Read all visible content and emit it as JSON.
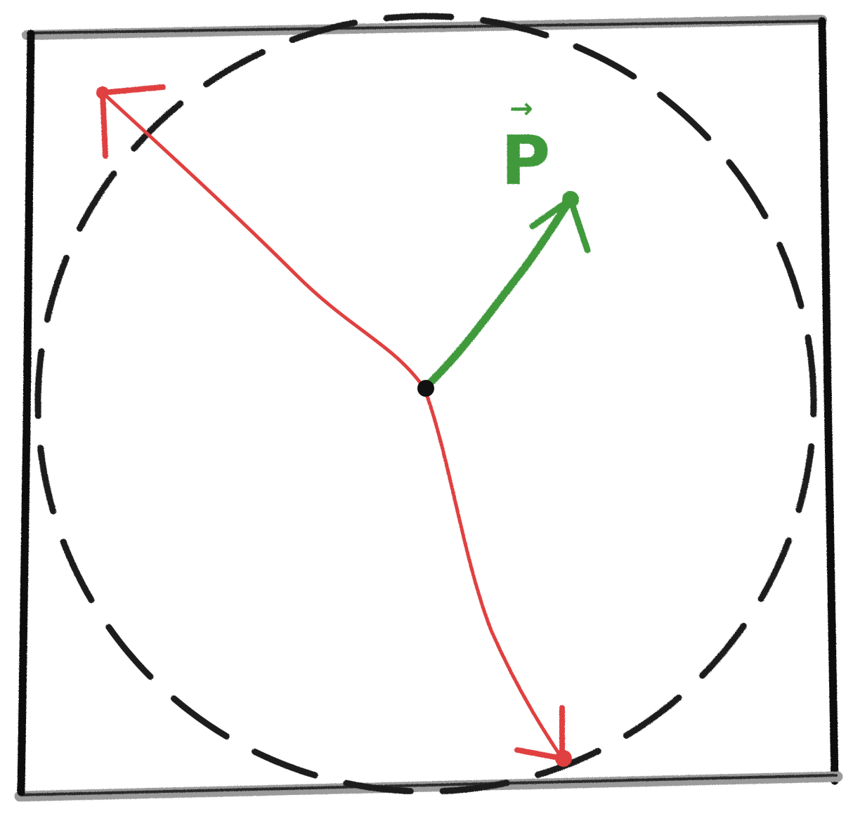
{
  "diagram": {
    "vector_label": "P",
    "vector_label_arrow": "→",
    "colors": {
      "frame": "#1a1a1a",
      "circle": "#1e1e1e",
      "red_vectors": "#e04040",
      "green_vector": "#3f9a3a",
      "center": "#111111"
    }
  }
}
